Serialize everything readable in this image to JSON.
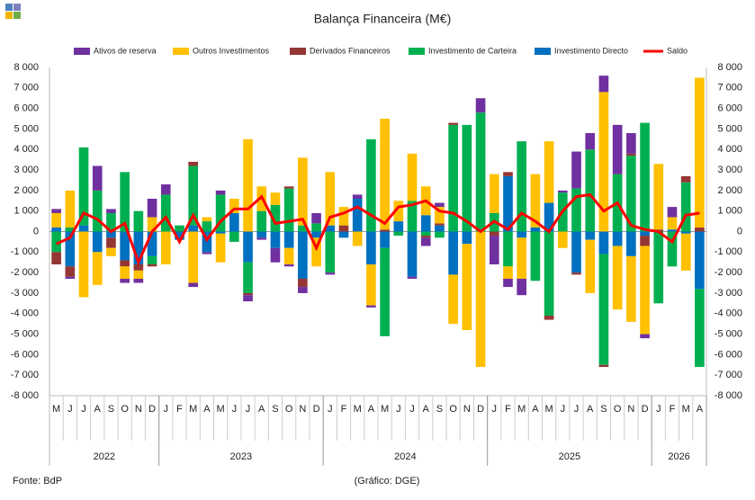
{
  "chart_data": {
    "type": "bar",
    "stacked": true,
    "title": "Balança Financeira (M€)",
    "source": "Fonte: BdP",
    "credit": "(Gráfico: DGE)",
    "categories": [
      "M",
      "J",
      "J",
      "A",
      "S",
      "O",
      "N",
      "D",
      "J",
      "F",
      "M",
      "A",
      "M",
      "J",
      "J",
      "A",
      "S",
      "O",
      "N",
      "D",
      "J",
      "F",
      "M",
      "A",
      "M",
      "J",
      "J",
      "A",
      "S",
      "O",
      "N",
      "D",
      "J",
      "F",
      "M",
      "A",
      "M",
      "J",
      "J",
      "A",
      "S",
      "O",
      "N",
      "D",
      "J",
      "F",
      "M",
      "A"
    ],
    "years": [
      {
        "label": "2022",
        "months": 8
      },
      {
        "label": "2023",
        "months": 12
      },
      {
        "label": "2024",
        "months": 12
      },
      {
        "label": "2025",
        "months": 12
      },
      {
        "label": "2026",
        "months": 4
      }
    ],
    "ylim": [
      -8000,
      8000
    ],
    "y2lim": [
      -8000,
      8000
    ],
    "yticks": [
      {
        "value": -8000,
        "label": "-8 000"
      },
      {
        "value": -7000,
        "label": "-7 000"
      },
      {
        "value": -6000,
        "label": "-6 000"
      },
      {
        "value": -5000,
        "label": "-5 000"
      },
      {
        "value": -4000,
        "label": "-4 000"
      },
      {
        "value": -3000,
        "label": "-3 000"
      },
      {
        "value": -2000,
        "label": "-2 000"
      },
      {
        "value": -1000,
        "label": "-1 000"
      },
      0,
      {
        "value": 1000,
        "label": "1 000"
      },
      {
        "value": 2000,
        "label": "2 000"
      },
      {
        "value": 3000,
        "label": "3 000"
      },
      {
        "value": 4000,
        "label": "4 000"
      },
      {
        "value": 5000,
        "label": "5 000"
      },
      {
        "value": 6000,
        "label": "6 000"
      },
      {
        "value": 7000,
        "label": "7 000"
      },
      {
        "value": 8000,
        "label": "8 000"
      }
    ],
    "y2ticks": [
      {
        "value": -8000,
        "label": "-8 000"
      },
      {
        "value": -7000,
        "label": "-7 000"
      },
      {
        "value": -6000,
        "label": "-6 000"
      },
      {
        "value": -5000,
        "label": "-5 000"
      },
      {
        "value": -4000,
        "label": "-4 000"
      },
      {
        "value": -3000,
        "label": "-3 000"
      },
      {
        "value": -2000,
        "label": "-2 000"
      },
      {
        "value": -1000,
        "label": "-1 000"
      },
      0,
      {
        "value": 1000,
        "label": "1 000"
      },
      {
        "value": 2000,
        "label": "2 000"
      },
      {
        "value": 3000,
        "label": "3 000"
      },
      {
        "value": 4000,
        "label": "4 000"
      },
      {
        "value": 5000,
        "label": "5 000"
      },
      {
        "value": 6000,
        "label": "6 000"
      },
      {
        "value": 7000,
        "label": "7 000"
      },
      {
        "value": 8000,
        "label": "8 000"
      }
    ],
    "series": [
      {
        "name": "Ativos de reserva",
        "type": "bar",
        "color": "#7030a0",
        "values": [
          200,
          -100,
          0,
          1200,
          200,
          -200,
          -200,
          900,
          500,
          0,
          -200,
          -100,
          200,
          0,
          -300,
          -100,
          -700,
          -100,
          -300,
          500,
          -100,
          0,
          200,
          -100,
          0,
          0,
          -100,
          -400,
          200,
          0,
          0,
          700,
          -1400,
          -400,
          -800,
          0,
          0,
          100,
          1800,
          800,
          800,
          2400,
          1000,
          -200,
          0,
          500,
          0,
          0
        ]
      },
      {
        "name": "Outros Investimentos",
        "type": "bar",
        "color": "#ffc000",
        "values": [
          700,
          1800,
          -3200,
          -1600,
          -400,
          -600,
          -400,
          700,
          -1600,
          0,
          -2500,
          200,
          -1400,
          700,
          4500,
          1200,
          600,
          -800,
          3300,
          -1400,
          2600,
          900,
          -700,
          -2000,
          5400,
          1000,
          2300,
          1400,
          800,
          -2400,
          -4200,
          -6600,
          1900,
          -600,
          -2000,
          2600,
          3000,
          -800,
          0,
          -2600,
          6800,
          -3100,
          -3200,
          -4300,
          3200,
          600,
          -1800,
          7300
        ]
      },
      {
        "name": "Derivados Financeiros",
        "type": "bar",
        "color": "#943634",
        "values": [
          -600,
          -500,
          0,
          0,
          -500,
          -300,
          -300,
          -100,
          0,
          0,
          200,
          0,
          0,
          0,
          -100,
          0,
          0,
          100,
          -400,
          0,
          0,
          300,
          0,
          0,
          100,
          0,
          0,
          -100,
          100,
          100,
          0,
          0,
          -200,
          200,
          0,
          0,
          -200,
          0,
          -100,
          0,
          -100,
          0,
          100,
          -500,
          100,
          0,
          300,
          200
        ]
      },
      {
        "name": "Investimento de Carteira",
        "type": "bar",
        "color": "#00b050",
        "values": [
          -1000,
          200,
          3800,
          2000,
          900,
          2900,
          1000,
          -400,
          1800,
          300,
          2900,
          500,
          1800,
          -500,
          -1500,
          1000,
          1300,
          2100,
          300,
          400,
          -2000,
          0,
          0,
          4500,
          -4300,
          -200,
          1500,
          -200,
          -300,
          5200,
          5200,
          5800,
          900,
          -1700,
          4400,
          -2400,
          -4100,
          1900,
          2100,
          4000,
          -5400,
          2800,
          3700,
          5300,
          -3500,
          -1700,
          2400,
          -3800
        ]
      },
      {
        "name": "Investimento Directo",
        "type": "bar",
        "color": "#0070c0",
        "values": [
          200,
          -1700,
          300,
          -1000,
          -300,
          -1400,
          -1600,
          -1200,
          0,
          -400,
          300,
          -1000,
          -100,
          900,
          -1500,
          -300,
          -800,
          -800,
          -2300,
          -300,
          300,
          -300,
          1600,
          -1600,
          -800,
          500,
          -2200,
          800,
          300,
          -2100,
          -600,
          0,
          0,
          2700,
          -300,
          200,
          1400,
          0,
          -2000,
          -400,
          -1100,
          -700,
          -1200,
          -200,
          0,
          100,
          -100,
          -2800
        ]
      },
      {
        "name": "Saldo",
        "type": "line",
        "color": "#ff0000",
        "values": [
          -600,
          -300,
          900,
          600,
          0,
          400,
          -1500,
          0,
          700,
          -500,
          800,
          -400,
          500,
          1100,
          1100,
          1700,
          400,
          500,
          600,
          -800,
          700,
          900,
          1200,
          800,
          400,
          1200,
          1300,
          1500,
          1000,
          900,
          500,
          0,
          500,
          100,
          900,
          500,
          0,
          1000,
          1700,
          1800,
          1000,
          1400,
          300,
          100,
          0,
          -500,
          800,
          900
        ]
      }
    ]
  }
}
